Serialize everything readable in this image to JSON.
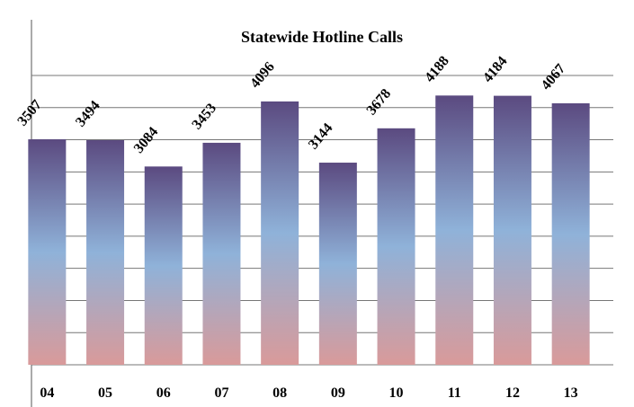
{
  "chart_data": {
    "type": "bar",
    "title": "Statewide  Hotline Calls",
    "categories": [
      "04",
      "05",
      "06",
      "07",
      "08",
      "09",
      "10",
      "11",
      "12",
      "13"
    ],
    "values": [
      3507,
      3494,
      3084,
      3453,
      4096,
      3144,
      3678,
      4188,
      4184,
      4067
    ],
    "colors": [
      "#5b4a80",
      "#8fb2d9",
      "#d99a9a"
    ],
    "ylim": [
      0,
      4500
    ],
    "yticks": [
      0,
      500,
      1000,
      1500,
      2000,
      2500,
      3000,
      3500,
      4000,
      4500
    ],
    "grid": true
  }
}
